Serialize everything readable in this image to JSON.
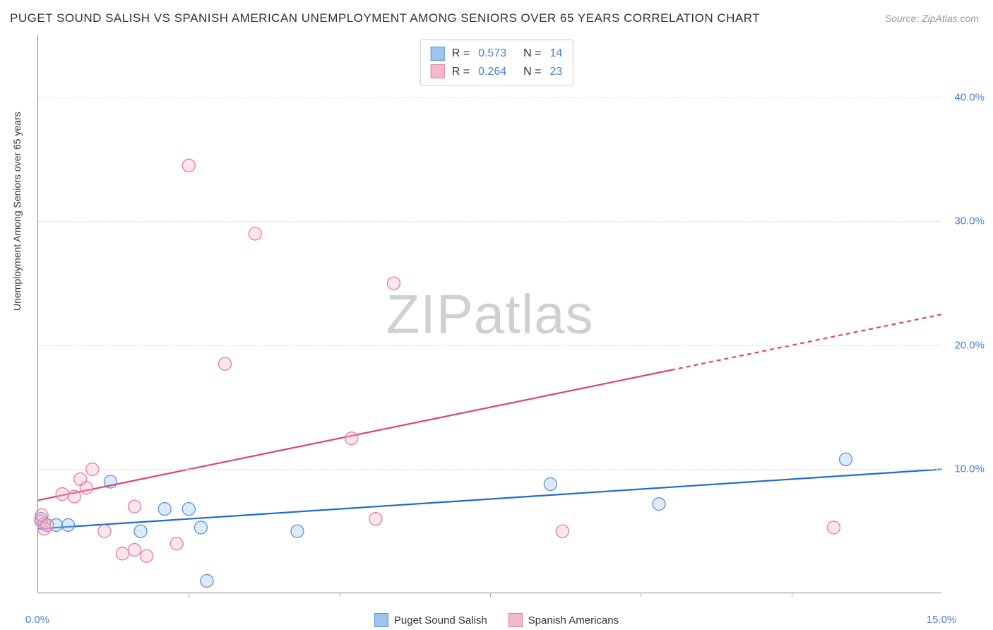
{
  "title": "PUGET SOUND SALISH VS SPANISH AMERICAN UNEMPLOYMENT AMONG SENIORS OVER 65 YEARS CORRELATION CHART",
  "source": "Source: ZipAtlas.com",
  "y_axis_label": "Unemployment Among Seniors over 65 years",
  "watermark_bold": "ZIP",
  "watermark_thin": "atlas",
  "chart": {
    "type": "scatter-with-regression",
    "xlim": [
      0,
      15
    ],
    "ylim": [
      0,
      45
    ],
    "x_ticks": [
      0.0,
      15.0
    ],
    "x_tick_labels": [
      "0.0%",
      "15.0%"
    ],
    "x_minor_ticks": [
      2.5,
      5.0,
      7.5,
      10.0,
      12.5
    ],
    "y_ticks": [
      10.0,
      20.0,
      30.0,
      40.0
    ],
    "y_tick_labels": [
      "10.0%",
      "20.0%",
      "30.0%",
      "40.0%"
    ],
    "background_color": "#ffffff",
    "grid_color": "#dddddd",
    "axis_color": "#888888",
    "tick_label_color": "#4a7fd8",
    "marker_radius": 9,
    "marker_fill_opacity": 0.35,
    "marker_stroke_width": 1.3,
    "line_width": 2.2,
    "series": [
      {
        "name": "Puget Sound Salish",
        "color_fill": "#9ec4ef",
        "color_stroke": "#5b93d6",
        "line_color": "#1d6bd1",
        "R": "0.573",
        "N": "14",
        "points": [
          {
            "x": 0.05,
            "y": 6.0
          },
          {
            "x": 0.1,
            "y": 5.6
          },
          {
            "x": 0.3,
            "y": 5.5
          },
          {
            "x": 0.5,
            "y": 5.5
          },
          {
            "x": 1.2,
            "y": 9.0
          },
          {
            "x": 1.7,
            "y": 5.0
          },
          {
            "x": 2.1,
            "y": 6.8
          },
          {
            "x": 2.5,
            "y": 6.8
          },
          {
            "x": 2.7,
            "y": 5.3
          },
          {
            "x": 2.8,
            "y": 1.0
          },
          {
            "x": 4.3,
            "y": 5.0
          },
          {
            "x": 8.5,
            "y": 8.8
          },
          {
            "x": 10.3,
            "y": 7.2
          },
          {
            "x": 13.4,
            "y": 10.8
          }
        ],
        "regression": {
          "x1": 0,
          "y1": 5.2,
          "x2": 15,
          "y2": 10
        },
        "dash_from_x": 15
      },
      {
        "name": "Spanish Americans",
        "color_fill": "#f5b8c8",
        "color_stroke": "#e67c9c",
        "line_color": "#e0436d",
        "R": "0.264",
        "N": "23",
        "points": [
          {
            "x": 0.05,
            "y": 5.8
          },
          {
            "x": 0.06,
            "y": 6.3
          },
          {
            "x": 0.1,
            "y": 5.2
          },
          {
            "x": 0.15,
            "y": 5.5
          },
          {
            "x": 0.4,
            "y": 8.0
          },
          {
            "x": 0.6,
            "y": 7.8
          },
          {
            "x": 0.7,
            "y": 9.2
          },
          {
            "x": 0.9,
            "y": 10.0
          },
          {
            "x": 0.8,
            "y": 8.5
          },
          {
            "x": 1.1,
            "y": 5.0
          },
          {
            "x": 1.4,
            "y": 3.2
          },
          {
            "x": 1.6,
            "y": 7.0
          },
          {
            "x": 1.6,
            "y": 3.5
          },
          {
            "x": 1.8,
            "y": 3.0
          },
          {
            "x": 2.3,
            "y": 4.0
          },
          {
            "x": 2.5,
            "y": 34.5
          },
          {
            "x": 3.1,
            "y": 18.5
          },
          {
            "x": 3.6,
            "y": 29.0
          },
          {
            "x": 5.2,
            "y": 12.5
          },
          {
            "x": 5.6,
            "y": 6.0
          },
          {
            "x": 5.9,
            "y": 25.0
          },
          {
            "x": 8.7,
            "y": 5.0
          },
          {
            "x": 13.2,
            "y": 5.3
          }
        ],
        "regression": {
          "x1": 0,
          "y1": 7.5,
          "x2": 15,
          "y2": 22.5
        },
        "dash_from_x": 10.5
      }
    ]
  },
  "legend_top": [
    {
      "swatch_fill": "#9ec4ef",
      "swatch_stroke": "#5b93d6",
      "r_label": "R =",
      "r_val": "0.573",
      "n_label": "N =",
      "n_val": "14"
    },
    {
      "swatch_fill": "#f5b8c8",
      "swatch_stroke": "#e67c9c",
      "r_label": "R =",
      "r_val": "0.264",
      "n_label": "N =",
      "n_val": "23"
    }
  ],
  "legend_bottom": [
    {
      "swatch_fill": "#9ec4ef",
      "swatch_stroke": "#5b93d6",
      "label": "Puget Sound Salish"
    },
    {
      "swatch_fill": "#f5b8c8",
      "swatch_stroke": "#e67c9c",
      "label": "Spanish Americans"
    }
  ]
}
